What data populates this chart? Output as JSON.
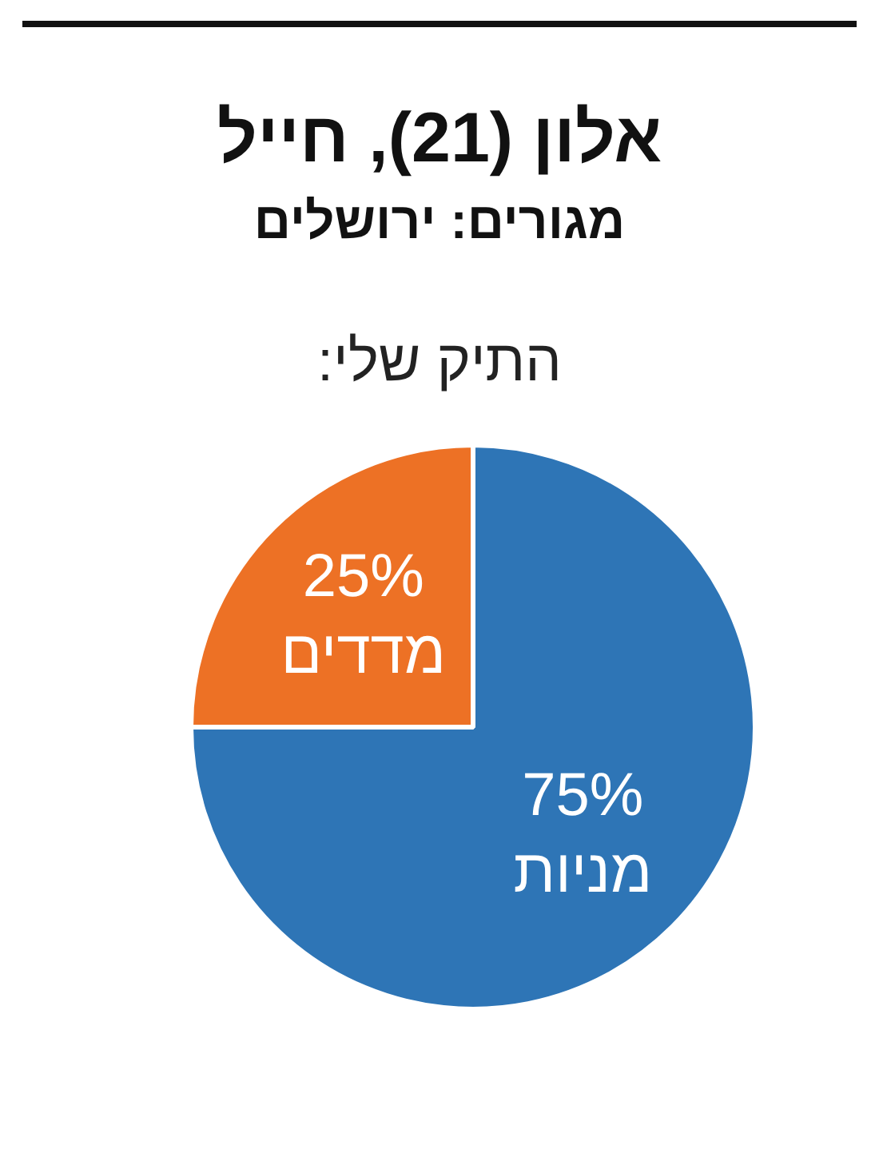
{
  "chart_data": {
    "type": "pie",
    "title": "אלון (21), חייל",
    "subtitle": "מגורים: ירושלים",
    "annotations": [
      "התיק שלי:"
    ],
    "categories": [
      "מניות",
      "מדדים"
    ],
    "values": [
      75,
      25
    ],
    "colors": [
      "#2e75b6",
      "#ed7125"
    ],
    "value_labels": [
      "75%",
      "25%"
    ],
    "legend": false
  }
}
